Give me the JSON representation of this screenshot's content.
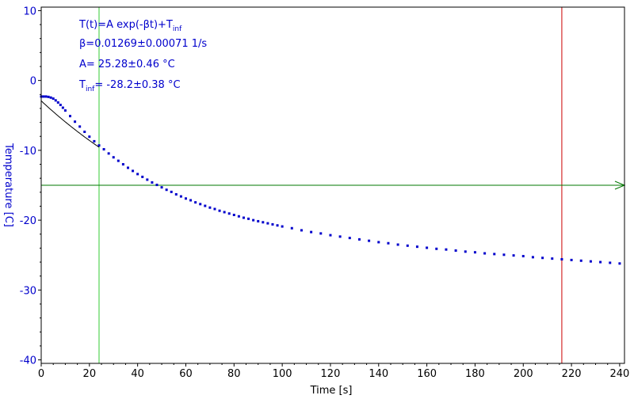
{
  "chart_data": {
    "type": "scatter",
    "xlabel": "Time [s]",
    "ylabel": "Temperature [C]",
    "xlim": [
      0,
      242
    ],
    "ylim": [
      -40.5,
      10.5
    ],
    "x_ticks": [
      0,
      20,
      40,
      60,
      80,
      100,
      120,
      140,
      160,
      180,
      200,
      220,
      240
    ],
    "y_ticks": [
      10,
      0,
      -10,
      -20,
      -30,
      -40
    ],
    "grid": false,
    "series": [
      {
        "kind": "measured",
        "color": "#0000cc",
        "points": [
          [
            0,
            -2.3
          ],
          [
            1,
            -2.3
          ],
          [
            2,
            -2.3
          ],
          [
            3,
            -2.35
          ],
          [
            4,
            -2.45
          ],
          [
            5,
            -2.6
          ],
          [
            6,
            -2.85
          ],
          [
            7,
            -3.15
          ],
          [
            8,
            -3.5
          ],
          [
            9,
            -3.9
          ],
          [
            10,
            -4.3
          ],
          [
            12,
            -5.1
          ],
          [
            14,
            -5.9
          ],
          [
            16,
            -6.6
          ],
          [
            18,
            -7.35
          ],
          [
            20,
            -8.05
          ],
          [
            22,
            -8.7
          ],
          [
            24,
            -9.3
          ],
          [
            26,
            -9.85
          ],
          [
            28,
            -10.45
          ],
          [
            30,
            -11.0
          ],
          [
            32,
            -11.5
          ],
          [
            34,
            -12.0
          ],
          [
            36,
            -12.5
          ],
          [
            38,
            -12.95
          ],
          [
            40,
            -13.4
          ],
          [
            42,
            -13.8
          ],
          [
            44,
            -14.2
          ],
          [
            46,
            -14.6
          ],
          [
            48,
            -14.95
          ],
          [
            50,
            -15.3
          ],
          [
            52,
            -15.65
          ],
          [
            54,
            -15.95
          ],
          [
            56,
            -16.3
          ],
          [
            58,
            -16.6
          ],
          [
            60,
            -16.9
          ],
          [
            62,
            -17.15
          ],
          [
            64,
            -17.45
          ],
          [
            66,
            -17.7
          ],
          [
            68,
            -17.95
          ],
          [
            70,
            -18.2
          ],
          [
            72,
            -18.4
          ],
          [
            74,
            -18.65
          ],
          [
            76,
            -18.85
          ],
          [
            78,
            -19.05
          ],
          [
            80,
            -19.25
          ],
          [
            82,
            -19.45
          ],
          [
            84,
            -19.65
          ],
          [
            86,
            -19.8
          ],
          [
            88,
            -20.0
          ],
          [
            90,
            -20.15
          ],
          [
            92,
            -20.3
          ],
          [
            94,
            -20.45
          ],
          [
            96,
            -20.6
          ],
          [
            98,
            -20.75
          ],
          [
            100,
            -20.9
          ],
          [
            104,
            -21.15
          ],
          [
            108,
            -21.45
          ],
          [
            112,
            -21.7
          ],
          [
            116,
            -21.9
          ],
          [
            120,
            -22.15
          ],
          [
            124,
            -22.35
          ],
          [
            128,
            -22.55
          ],
          [
            132,
            -22.75
          ],
          [
            136,
            -22.95
          ],
          [
            140,
            -23.15
          ],
          [
            144,
            -23.3
          ],
          [
            148,
            -23.5
          ],
          [
            152,
            -23.65
          ],
          [
            156,
            -23.8
          ],
          [
            160,
            -23.95
          ],
          [
            164,
            -24.1
          ],
          [
            168,
            -24.2
          ],
          [
            172,
            -24.35
          ],
          [
            176,
            -24.5
          ],
          [
            180,
            -24.6
          ],
          [
            184,
            -24.75
          ],
          [
            188,
            -24.85
          ],
          [
            192,
            -24.95
          ],
          [
            196,
            -25.05
          ],
          [
            200,
            -25.15
          ],
          [
            204,
            -25.3
          ],
          [
            208,
            -25.4
          ],
          [
            212,
            -25.5
          ],
          [
            216,
            -25.6
          ],
          [
            220,
            -25.7
          ],
          [
            224,
            -25.8
          ],
          [
            228,
            -25.9
          ],
          [
            232,
            -26.0
          ],
          [
            236,
            -26.1
          ],
          [
            240,
            -26.2
          ]
        ]
      },
      {
        "kind": "fit",
        "color": "#000000",
        "x_range": [
          0,
          24
        ],
        "A": 25.28,
        "beta": 0.01269,
        "T_inf": -28.2
      }
    ],
    "markers": {
      "vertical_green_x": 24,
      "vertical_red_x": 216,
      "horizontal_green_y": -15,
      "green_color": "#33cc33",
      "red_color": "#cc0000",
      "hline_color": "#007700"
    },
    "annotations": {
      "formula_main": "T(t)=A exp(-βt)+T",
      "formula_sub": "inf",
      "beta_line": "β=0.01269±0.00071 1/s",
      "a_line": "A= 25.28±0.46 °C",
      "tinf_main": "T",
      "tinf_sub": "inf",
      "tinf_rest": "= -28.2±0.38 °C"
    }
  }
}
